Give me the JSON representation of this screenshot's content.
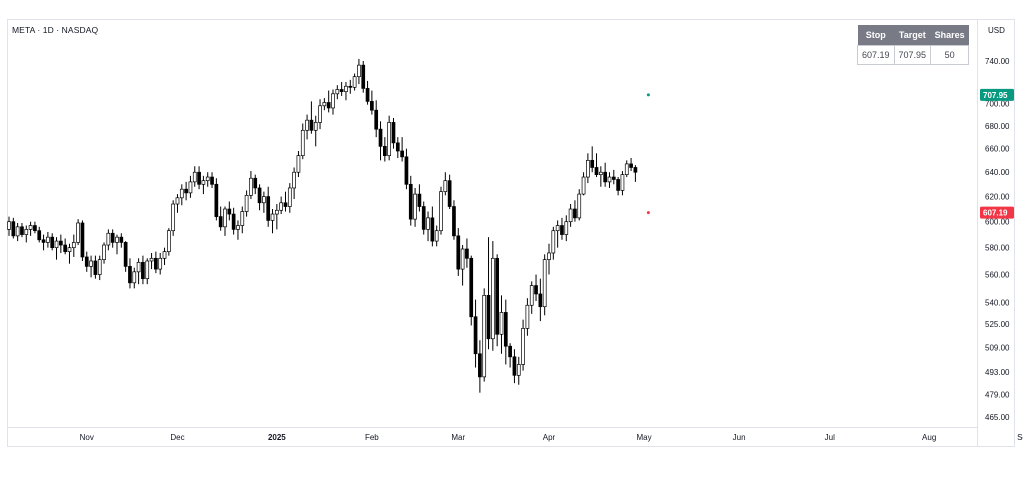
{
  "header": {
    "symbol": "META · 1D · NASDAQ"
  },
  "price_scale": {
    "currency": "USD"
  },
  "trade_table": {
    "headers": [
      "Stop",
      "Target",
      "Shares"
    ],
    "values": [
      "607.19",
      "707.95",
      "50"
    ]
  },
  "colors": {
    "up_body": "#ffffff",
    "down_body": "#000000",
    "wick": "#000000",
    "target": "#089981",
    "stop": "#f23645",
    "table_header": "#787b86",
    "axis_text": "#131722"
  },
  "chart_data": {
    "type": "candlestick",
    "title": "",
    "xlabel": "",
    "ylabel": "",
    "y_scale": "log",
    "ylim": [
      458,
      790
    ],
    "y_ticks": [
      "740.00",
      "700.00",
      "680.00",
      "660.00",
      "640.00",
      "620.00",
      "600.00",
      "580.00",
      "560.00",
      "540.00",
      "525.00",
      "509.00",
      "493.00",
      "479.00",
      "465.00"
    ],
    "x_ticks": [
      {
        "label": "Nov",
        "bold": false,
        "date": "2024-11-01"
      },
      {
        "label": "Dec",
        "bold": false,
        "date": "2024-12-02"
      },
      {
        "label": "2025",
        "bold": true,
        "date": "2025-01-02"
      },
      {
        "label": "Feb",
        "bold": false,
        "date": "2025-02-03"
      },
      {
        "label": "Mar",
        "bold": false,
        "date": "2025-03-03"
      },
      {
        "label": "Apr",
        "bold": false,
        "date": "2025-04-01"
      },
      {
        "label": "May",
        "bold": false,
        "date": "2025-05-01"
      },
      {
        "label": "Jun",
        "bold": false,
        "date": "2025-06-02"
      },
      {
        "label": "Jul",
        "bold": false,
        "date": "2025-07-01"
      },
      {
        "label": "Aug",
        "bold": false,
        "date": "2025-08-01"
      },
      {
        "label": "Sep",
        "bold": false,
        "date": "2025-09-02"
      }
    ],
    "lines": [
      {
        "name": "",
        "value": 707.95,
        "label": "707.95",
        "color": "#089981"
      },
      {
        "name": "",
        "value": 607.19,
        "label": "607.19",
        "color": "#f23645"
      }
    ],
    "columns": [
      "open",
      "high",
      "low",
      "close"
    ],
    "ohlc": [
      [
        594,
        604,
        589,
        600
      ],
      [
        600,
        603,
        587,
        589
      ],
      [
        589,
        599,
        585,
        596
      ],
      [
        596,
        599,
        588,
        590
      ],
      [
        590,
        597,
        584,
        594
      ],
      [
        594,
        600,
        589,
        597
      ],
      [
        597,
        600,
        591,
        593
      ],
      [
        593,
        596,
        584,
        586
      ],
      [
        586,
        590,
        578,
        584
      ],
      [
        584,
        592,
        580,
        588
      ],
      [
        588,
        591,
        578,
        580
      ],
      [
        580,
        588,
        571,
        585
      ],
      [
        585,
        590,
        576,
        582
      ],
      [
        582,
        587,
        575,
        577
      ],
      [
        577,
        583,
        568,
        580
      ],
      [
        580,
        590,
        573,
        584
      ],
      [
        584,
        602,
        582,
        599
      ],
      [
        599,
        601,
        570,
        573
      ],
      [
        573,
        577,
        562,
        566
      ],
      [
        566,
        574,
        558,
        570
      ],
      [
        570,
        574,
        557,
        560
      ],
      [
        560,
        574,
        556,
        571
      ],
      [
        571,
        584,
        568,
        582
      ],
      [
        582,
        594,
        578,
        591
      ],
      [
        591,
        594,
        580,
        584
      ],
      [
        584,
        590,
        575,
        588
      ],
      [
        588,
        591,
        580,
        584
      ],
      [
        584,
        585,
        562,
        566
      ],
      [
        566,
        572,
        550,
        554
      ],
      [
        554,
        565,
        550,
        562
      ],
      [
        562,
        572,
        553,
        569
      ],
      [
        569,
        574,
        553,
        557
      ],
      [
        557,
        572,
        553,
        570
      ],
      [
        570,
        576,
        564,
        572
      ],
      [
        572,
        577,
        561,
        564
      ],
      [
        564,
        576,
        560,
        572
      ],
      [
        572,
        580,
        567,
        577
      ],
      [
        577,
        595,
        574,
        593
      ],
      [
        593,
        617,
        589,
        614
      ],
      [
        614,
        622,
        607,
        619
      ],
      [
        619,
        630,
        613,
        626
      ],
      [
        626,
        632,
        617,
        623
      ],
      [
        623,
        637,
        619,
        632
      ],
      [
        632,
        645,
        628,
        640
      ],
      [
        640,
        645,
        626,
        630
      ],
      [
        630,
        637,
        622,
        633
      ],
      [
        633,
        640,
        628,
        636
      ],
      [
        636,
        640,
        627,
        630
      ],
      [
        630,
        635,
        601,
        604
      ],
      [
        604,
        612,
        593,
        596
      ],
      [
        596,
        612,
        589,
        610
      ],
      [
        610,
        616,
        601,
        606
      ],
      [
        606,
        611,
        590,
        594
      ],
      [
        594,
        601,
        586,
        597
      ],
      [
        597,
        612,
        591,
        608
      ],
      [
        608,
        625,
        604,
        621
      ],
      [
        621,
        641,
        618,
        635
      ],
      [
        635,
        638,
        622,
        627
      ],
      [
        627,
        630,
        609,
        615
      ],
      [
        615,
        624,
        607,
        620
      ],
      [
        620,
        628,
        596,
        601
      ],
      [
        601,
        610,
        591,
        606
      ],
      [
        606,
        614,
        594,
        609
      ],
      [
        609,
        620,
        606,
        615
      ],
      [
        615,
        624,
        608,
        612
      ],
      [
        612,
        631,
        607,
        627
      ],
      [
        627,
        644,
        618,
        640
      ],
      [
        640,
        658,
        636,
        654
      ],
      [
        654,
        682,
        651,
        676
      ],
      [
        676,
        690,
        668,
        685
      ],
      [
        685,
        702,
        673,
        676
      ],
      [
        676,
        689,
        662,
        683
      ],
      [
        683,
        704,
        677,
        698
      ],
      [
        698,
        705,
        694,
        701
      ],
      [
        701,
        712,
        692,
        696
      ],
      [
        696,
        713,
        690,
        709
      ],
      [
        709,
        717,
        704,
        713
      ],
      [
        713,
        720,
        707,
        711
      ],
      [
        711,
        720,
        703,
        716
      ],
      [
        716,
        722,
        709,
        715
      ],
      [
        715,
        728,
        712,
        725
      ],
      [
        725,
        742,
        718,
        736
      ],
      [
        736,
        740,
        710,
        714
      ],
      [
        714,
        721,
        699,
        702
      ],
      [
        702,
        712,
        690,
        694
      ],
      [
        694,
        703,
        670,
        677
      ],
      [
        677,
        684,
        650,
        662
      ],
      [
        662,
        670,
        649,
        654
      ],
      [
        654,
        689,
        650,
        683
      ],
      [
        683,
        687,
        660,
        665
      ],
      [
        665,
        670,
        652,
        658
      ],
      [
        658,
        670,
        649,
        653
      ],
      [
        653,
        660,
        626,
        630
      ],
      [
        630,
        637,
        597,
        602
      ],
      [
        602,
        627,
        596,
        622
      ],
      [
        622,
        630,
        608,
        612
      ],
      [
        612,
        616,
        590,
        594
      ],
      [
        594,
        608,
        585,
        603
      ],
      [
        603,
        612,
        581,
        585
      ],
      [
        585,
        597,
        581,
        593
      ],
      [
        593,
        628,
        590,
        624
      ],
      [
        624,
        640,
        621,
        633
      ],
      [
        633,
        638,
        610,
        612
      ],
      [
        612,
        617,
        586,
        589
      ],
      [
        589,
        595,
        559,
        564
      ],
      [
        564,
        582,
        552,
        579
      ],
      [
        579,
        587,
        565,
        572
      ],
      [
        572,
        574,
        524,
        530
      ],
      [
        530,
        542,
        496,
        505
      ],
      [
        505,
        514,
        480,
        490
      ],
      [
        490,
        550,
        487,
        545
      ],
      [
        545,
        588,
        508,
        515
      ],
      [
        515,
        585,
        507,
        572
      ],
      [
        572,
        575,
        510,
        518
      ],
      [
        518,
        545,
        505,
        533
      ],
      [
        533,
        542,
        498,
        510
      ],
      [
        510,
        512,
        496,
        503
      ],
      [
        503,
        508,
        486,
        491
      ],
      [
        491,
        503,
        485,
        498
      ],
      [
        498,
        528,
        494,
        522
      ],
      [
        522,
        543,
        517,
        538
      ],
      [
        538,
        555,
        532,
        552
      ],
      [
        552,
        560,
        541,
        546
      ],
      [
        546,
        557,
        527,
        537
      ],
      [
        537,
        575,
        531,
        571
      ],
      [
        571,
        583,
        560,
        576
      ],
      [
        576,
        596,
        571,
        593
      ],
      [
        593,
        601,
        580,
        597
      ],
      [
        597,
        603,
        586,
        590
      ],
      [
        590,
        605,
        585,
        600
      ],
      [
        600,
        614,
        596,
        610
      ],
      [
        610,
        617,
        600,
        603
      ],
      [
        603,
        626,
        601,
        622
      ],
      [
        622,
        640,
        621,
        636
      ],
      [
        636,
        656,
        631,
        650
      ],
      [
        650,
        662,
        640,
        644
      ],
      [
        644,
        656,
        636,
        638
      ],
      [
        638,
        645,
        628,
        640
      ],
      [
        640,
        648,
        628,
        632
      ],
      [
        632,
        640,
        627,
        636
      ],
      [
        636,
        642,
        630,
        634
      ],
      [
        634,
        636,
        621,
        625
      ],
      [
        625,
        641,
        621,
        638
      ],
      [
        638,
        650,
        636,
        647
      ],
      [
        647,
        652,
        641,
        644
      ],
      [
        644,
        646,
        632,
        640
      ]
    ]
  }
}
